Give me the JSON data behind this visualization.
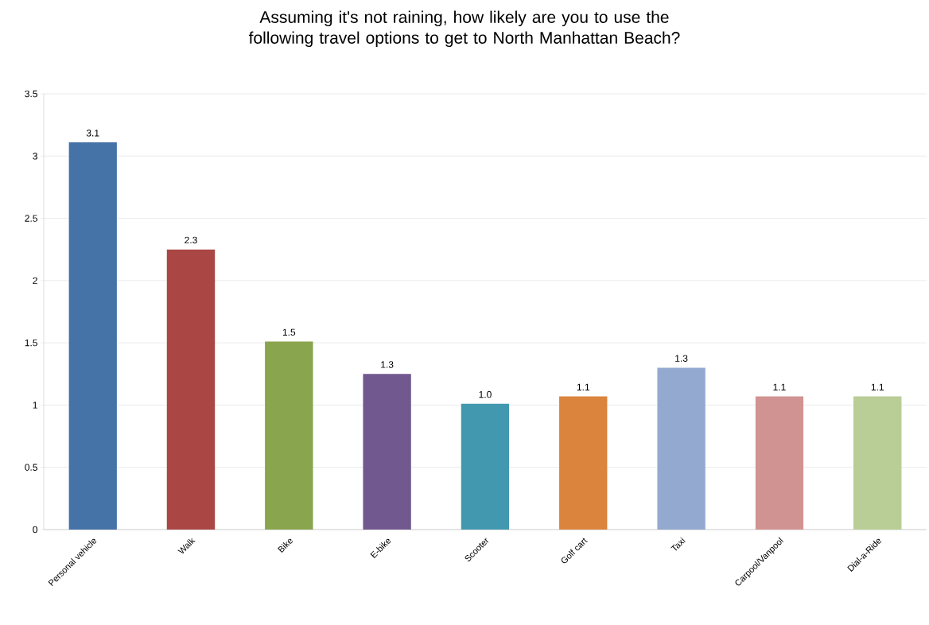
{
  "chart_data": {
    "type": "bar",
    "title": "Assuming it's not raining, how likely are you to use the following travel options to get to North Manhattan Beach?",
    "categories": [
      "Personal vehicle",
      "Walk",
      "Bike",
      "E-bike",
      "Scooter",
      "Golf cart",
      "Taxi",
      "Carpool/Vanpool",
      "Dial-a-Ride"
    ],
    "values": [
      3.11,
      2.25,
      1.51,
      1.25,
      1.01,
      1.07,
      1.3,
      1.07,
      1.07
    ],
    "value_labels": [
      "3.1",
      "2.3",
      "1.5",
      "1.3",
      "1.0",
      "1.1",
      "1.3",
      "1.1",
      "1.1"
    ],
    "colors": [
      "#4572a7",
      "#aa4643",
      "#89a54e",
      "#71588f",
      "#4198af",
      "#db843d",
      "#93a9cf",
      "#d19392",
      "#b9cd96"
    ],
    "ylim": [
      0,
      3.5
    ],
    "yticks": [
      0,
      0.5,
      1,
      1.5,
      2,
      2.5,
      3,
      3.5
    ],
    "grid": "y"
  }
}
